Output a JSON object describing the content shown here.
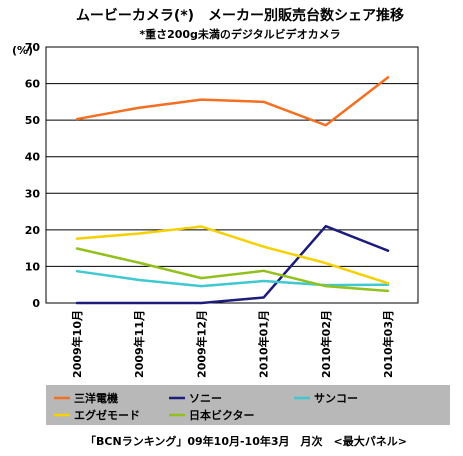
{
  "chart_data": {
    "type": "line",
    "title": "ムービーカメラ(*)　メーカー別販売台数シェア推移",
    "subtitle": "*重さ200g未満のデジタルビデオカメラ",
    "ylabel": "(%)",
    "xlabel": "",
    "ylim": [
      0,
      70
    ],
    "yticks": [
      0,
      10,
      20,
      30,
      40,
      50,
      60,
      70
    ],
    "grid": true,
    "legend_position": "bottom",
    "categories": [
      "2009年10月",
      "2009年11月",
      "2009年12月",
      "2010年01月",
      "2010年02月",
      "2010年03月"
    ],
    "series": [
      {
        "name": "三洋電機",
        "color": "#f36f21",
        "values": [
          50.3,
          53.4,
          55.6,
          55.0,
          48.6,
          61.7
        ]
      },
      {
        "name": "ソニー",
        "color": "#1c1c7a",
        "values": [
          0.0,
          0.0,
          0.0,
          1.5,
          21.0,
          14.3
        ]
      },
      {
        "name": "サンコー",
        "color": "#3fc8d0",
        "values": [
          8.7,
          6.3,
          4.6,
          6.0,
          4.9,
          5.0
        ]
      },
      {
        "name": "エグゼモード",
        "color": "#f7d000",
        "values": [
          17.6,
          19.0,
          20.9,
          15.4,
          10.9,
          5.4
        ]
      },
      {
        "name": "日本ビクター",
        "color": "#92c01c",
        "values": [
          14.9,
          11.0,
          6.8,
          8.8,
          4.6,
          3.3
        ]
      }
    ],
    "footnote": "「BCNランキング」09年10月-10年3月　月次　<最大パネル>"
  }
}
